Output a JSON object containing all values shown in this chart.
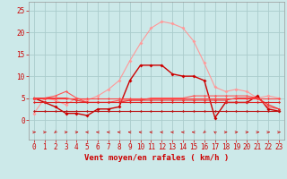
{
  "x": [
    0,
    1,
    2,
    3,
    4,
    5,
    6,
    7,
    8,
    9,
    10,
    11,
    12,
    13,
    14,
    15,
    16,
    17,
    18,
    19,
    20,
    21,
    22,
    23
  ],
  "series": [
    {
      "color": "#ff9999",
      "values": [
        1.5,
        5.0,
        4.5,
        3.5,
        5.0,
        4.5,
        5.5,
        7.0,
        9.0,
        13.5,
        17.5,
        21.0,
        22.5,
        22.0,
        21.0,
        18.0,
        13.0,
        7.5,
        6.5,
        7.0,
        6.5,
        5.0,
        5.5,
        5.0
      ],
      "marker": "D",
      "linewidth": 0.8,
      "markersize": 2.0
    },
    {
      "color": "#cc0000",
      "values": [
        5.0,
        4.0,
        3.0,
        1.5,
        1.5,
        1.0,
        2.5,
        2.5,
        3.0,
        9.0,
        12.5,
        12.5,
        12.5,
        10.5,
        10.0,
        10.0,
        9.0,
        0.5,
        4.0,
        4.0,
        4.0,
        5.5,
        2.5,
        2.0
      ],
      "marker": "D",
      "linewidth": 1.0,
      "markersize": 2.0
    },
    {
      "color": "#ff5555",
      "values": [
        5.0,
        5.0,
        5.5,
        6.5,
        5.0,
        4.0,
        4.0,
        4.0,
        4.5,
        4.5,
        4.5,
        5.0,
        5.0,
        5.0,
        5.0,
        5.5,
        5.5,
        5.5,
        5.5,
        5.5,
        5.5,
        5.0,
        3.0,
        2.5
      ],
      "marker": "D",
      "linewidth": 0.8,
      "markersize": 1.5
    },
    {
      "color": "#ee3333",
      "values": [
        5.0,
        5.0,
        5.0,
        5.0,
        4.5,
        4.0,
        4.0,
        4.0,
        4.0,
        4.5,
        4.5,
        4.5,
        4.5,
        4.5,
        4.5,
        4.5,
        4.5,
        4.5,
        4.5,
        5.0,
        5.0,
        5.0,
        3.5,
        2.5
      ],
      "marker": "D",
      "linewidth": 0.8,
      "markersize": 1.5
    },
    {
      "color": "#ff4444",
      "values": [
        5.0,
        5.0,
        5.0,
        5.0,
        5.0,
        5.0,
        5.0,
        5.0,
        5.0,
        5.0,
        5.0,
        5.0,
        5.0,
        5.0,
        5.0,
        5.0,
        5.0,
        5.0,
        5.0,
        5.0,
        5.0,
        5.0,
        5.0,
        5.0
      ],
      "marker": "D",
      "linewidth": 0.8,
      "markersize": 1.5
    },
    {
      "color": "#dd2222",
      "values": [
        4.0,
        4.0,
        4.0,
        4.0,
        4.0,
        4.0,
        4.0,
        4.0,
        4.0,
        4.0,
        4.0,
        4.0,
        4.0,
        4.0,
        4.0,
        4.0,
        4.0,
        4.0,
        4.0,
        4.0,
        4.0,
        4.0,
        4.0,
        4.0
      ],
      "marker": "D",
      "linewidth": 0.8,
      "markersize": 1.5
    },
    {
      "color": "#bb1111",
      "values": [
        2.0,
        2.0,
        2.0,
        2.0,
        2.0,
        2.0,
        2.0,
        2.0,
        2.0,
        2.0,
        2.0,
        2.0,
        2.0,
        2.0,
        2.0,
        2.0,
        2.0,
        2.0,
        2.0,
        2.0,
        2.0,
        2.0,
        2.0,
        2.0
      ],
      "marker": "D",
      "linewidth": 0.8,
      "markersize": 1.5
    }
  ],
  "wind_dirs": [
    90,
    90,
    225,
    90,
    90,
    270,
    270,
    270,
    270,
    270,
    270,
    270,
    270,
    270,
    270,
    270,
    225,
    315,
    90,
    90,
    90,
    90,
    90,
    90
  ],
  "xlabel": "Vent moyen/en rafales ( km/h )",
  "ylabel": "",
  "yticks": [
    0,
    5,
    10,
    15,
    20,
    25
  ],
  "xticks": [
    0,
    1,
    2,
    3,
    4,
    5,
    6,
    7,
    8,
    9,
    10,
    11,
    12,
    13,
    14,
    15,
    16,
    17,
    18,
    19,
    20,
    21,
    22,
    23
  ],
  "ylim": [
    -4.5,
    27
  ],
  "xlim": [
    -0.5,
    23.5
  ],
  "bg_color": "#cce9e9",
  "grid_color": "#aacccc",
  "arrow_color": "#cc0000",
  "xlabel_color": "#cc0000",
  "xlabel_fontsize": 6.5,
  "tick_fontsize": 5.5
}
